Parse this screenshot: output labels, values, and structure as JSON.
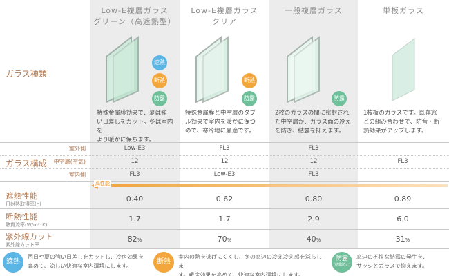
{
  "columns": [
    {
      "title_line1": "Low-E複層ガラス",
      "title_line2": "グリーン（高遮熱型）",
      "desc_lines": [
        "特殊金属膜効果で、夏は強",
        "い日差しをカット。冬は室内を",
        "より暖かに保ちます。"
      ]
    },
    {
      "title_line1": "Low-E複層ガラス",
      "title_line2": "クリア",
      "desc_lines": [
        "特殊金属膜と中空層のダブ",
        "ル効果で室内を暖かに保つ",
        "ので、寒冷地に最適です。"
      ]
    },
    {
      "title_line1": "一般複層ガラス",
      "title_line2": "",
      "desc_lines": [
        "2枚のガラスの間に密封され",
        "た中空層が、ガラス面の冷え",
        "を防ぎ、結露を抑えます。"
      ]
    },
    {
      "title_line1": "単板ガラス",
      "title_line2": "",
      "desc_lines": [
        "1枚板のガラスです。既存窓",
        "との組み合わせで、防音・断",
        "熱効果がアップします。"
      ]
    }
  ],
  "badges": {
    "shanetsu": "遮熱",
    "dannetsu": "断熱",
    "boro": "防露"
  },
  "labels": {
    "glass_type": "ガラス種類",
    "glass_config": "ガラス構成",
    "outer": "室外側",
    "middle": "中空層(空気)",
    "inner": "室内側",
    "high_performance": "高性能"
  },
  "config": {
    "outer": [
      "Low-E3",
      "FL3",
      "FL3"
    ],
    "middle": [
      "12",
      "12",
      "12"
    ],
    "inner": [
      "FL3",
      "Low-E3",
      "FL3"
    ],
    "single": "FL3"
  },
  "performance": [
    {
      "title": "遮熱性能",
      "sub": "日射熱取得率(η)",
      "values": [
        "0.40",
        "0.62",
        "0.80",
        "0.89"
      ],
      "unit": ""
    },
    {
      "title": "断熱性能",
      "sub": "熱貫流率(W/m²･K)",
      "values": [
        "1.7",
        "1.7",
        "2.9",
        "6.0"
      ],
      "unit": ""
    },
    {
      "title": "紫外線カット",
      "sub": "紫外線カット率",
      "values": [
        "82",
        "70",
        "40",
        "31"
      ],
      "unit": "%"
    }
  ],
  "legend": [
    {
      "badge": "遮熱",
      "color": "#5bb6e6",
      "line1": "西日や夏の強い日差しをカットし、冷房効果を",
      "line2": "高めて、涼しい快適な室内環境にします。"
    },
    {
      "badge": "断熱",
      "color": "#f3a63c",
      "line1": "室内の熱を逃げにくくし、冬の窓辺の冷え冷え感を減らしま",
      "line2": "す。暖房効果を高めて、快適な室内環境にします。"
    },
    {
      "badge": "防露",
      "badge_sub": "(結露防止)",
      "color": "#6fbf9a",
      "line1": "窓辺の不快な結露の発生を、",
      "line2": "サッシとガラスで抑えます。"
    }
  ]
}
